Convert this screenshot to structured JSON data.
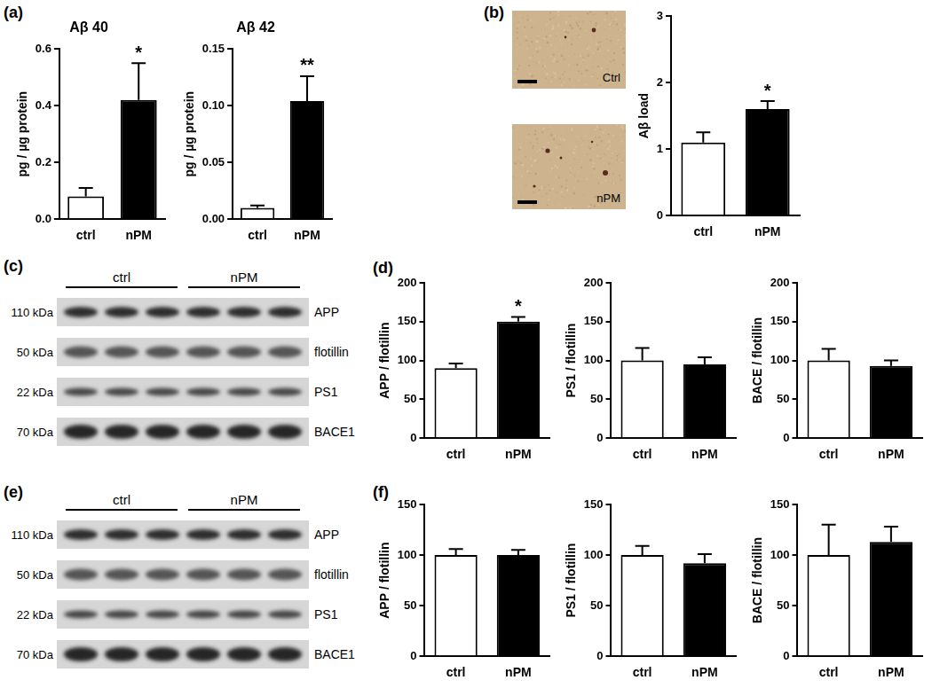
{
  "panel_labels": [
    "(a)",
    "(b)",
    "(c)",
    "(d)",
    "(e)",
    "(f)"
  ],
  "chart_data": [
    {
      "type": "bar",
      "title": "Aβ 40",
      "y_label": "pg / µg protein",
      "categories": [
        "ctrl",
        "nPM"
      ],
      "values": [
        0.08,
        0.42
      ],
      "errors": [
        0.03,
        0.13
      ],
      "colors": [
        "#ffffff",
        "#000000"
      ],
      "ylim": [
        0,
        0.6
      ],
      "yticks": [
        {
          "value": 0,
          "label": "0.0"
        },
        0.2,
        0.4,
        0.6
      ],
      "grid": false,
      "annotations": [
        {
          "category": "nPM",
          "text": "*"
        }
      ]
    },
    {
      "type": "bar",
      "title": "Aβ 42",
      "y_label": "pg / µg protein",
      "categories": [
        "ctrl",
        "nPM"
      ],
      "values": [
        0.01,
        0.104
      ],
      "errors": [
        0.002,
        0.022
      ],
      "colors": [
        "#ffffff",
        "#000000"
      ],
      "ylim": [
        0,
        0.15
      ],
      "yticks": [
        {
          "value": 0,
          "label": "0.00"
        },
        0.05,
        {
          "value": 0.1,
          "label": "0.10"
        },
        0.15
      ],
      "grid": false,
      "annotations": [
        {
          "category": "nPM",
          "text": "**"
        }
      ]
    },
    {
      "type": "bar",
      "y_label": "Aβ load",
      "categories": [
        "ctrl",
        "nPM"
      ],
      "values": [
        1.1,
        1.6
      ],
      "errors": [
        0.15,
        0.12
      ],
      "colors": [
        "#ffffff",
        "#000000"
      ],
      "ylim": [
        0,
        3
      ],
      "yticks": [
        0,
        1,
        2,
        3
      ],
      "grid": false,
      "annotations": [
        {
          "category": "nPM",
          "text": "*"
        }
      ]
    },
    {
      "type": "bar",
      "y_label": "APP / flotillin",
      "categories": [
        "ctrl",
        "nPM"
      ],
      "values": [
        90,
        150
      ],
      "errors": [
        6,
        6
      ],
      "colors": [
        "#ffffff",
        "#000000"
      ],
      "ylim": [
        0,
        200
      ],
      "yticks": [
        0,
        50,
        100,
        150,
        200
      ],
      "grid": false,
      "annotations": [
        {
          "category": "nPM",
          "text": "*"
        }
      ]
    },
    {
      "type": "bar",
      "y_label": "PS1 / flotillin",
      "categories": [
        "ctrl",
        "nPM"
      ],
      "values": [
        100,
        95
      ],
      "errors": [
        16,
        9
      ],
      "colors": [
        "#ffffff",
        "#000000"
      ],
      "ylim": [
        0,
        200
      ],
      "yticks": [
        0,
        50,
        100,
        150,
        200
      ],
      "grid": false
    },
    {
      "type": "bar",
      "y_label": "BACE / flotillin",
      "categories": [
        "ctrl",
        "nPM"
      ],
      "values": [
        100,
        93
      ],
      "errors": [
        15,
        7
      ],
      "colors": [
        "#ffffff",
        "#000000"
      ],
      "ylim": [
        0,
        200
      ],
      "yticks": [
        0,
        50,
        100,
        150,
        200
      ],
      "grid": false
    },
    {
      "type": "bar",
      "y_label": "APP / flotillin",
      "categories": [
        "ctrl",
        "nPM"
      ],
      "values": [
        100,
        100
      ],
      "errors": [
        6,
        5
      ],
      "colors": [
        "#ffffff",
        "#000000"
      ],
      "ylim": [
        0,
        150
      ],
      "yticks": [
        0,
        50,
        100,
        150
      ],
      "grid": false
    },
    {
      "type": "bar",
      "y_label": "PS1 / flotillin",
      "categories": [
        "ctrl",
        "nPM"
      ],
      "values": [
        100,
        92
      ],
      "errors": [
        9,
        9
      ],
      "colors": [
        "#ffffff",
        "#000000"
      ],
      "ylim": [
        0,
        150
      ],
      "yticks": [
        0,
        50,
        100,
        150
      ],
      "grid": false
    },
    {
      "type": "bar",
      "y_label": "BACE / flotillin",
      "categories": [
        "ctrl",
        "nPM"
      ],
      "values": [
        100,
        113
      ],
      "errors": [
        30,
        15
      ],
      "colors": [
        "#ffffff",
        "#000000"
      ],
      "ylim": [
        0,
        150
      ],
      "yticks": [
        0,
        50,
        100,
        150
      ],
      "grid": false
    }
  ],
  "micrographs": [
    {
      "label": "Ctrl"
    },
    {
      "label": "nPM"
    }
  ],
  "blots": [
    {
      "groups": [
        "ctrl",
        "nPM"
      ],
      "rows": [
        {
          "size": "110 kDa",
          "protein": "APP"
        },
        {
          "size": "50 kDa",
          "protein": "flotillin"
        },
        {
          "size": "22 kDa",
          "protein": "PS1"
        },
        {
          "size": "70 kDa",
          "protein": "BACE1"
        }
      ]
    },
    {
      "groups": [
        "ctrl",
        "nPM"
      ],
      "rows": [
        {
          "size": "110 kDa",
          "protein": "APP"
        },
        {
          "size": "50 kDa",
          "protein": "flotillin"
        },
        {
          "size": "22 kDa",
          "protein": "PS1"
        },
        {
          "size": "70 kDa",
          "protein": "BACE1"
        }
      ]
    }
  ]
}
